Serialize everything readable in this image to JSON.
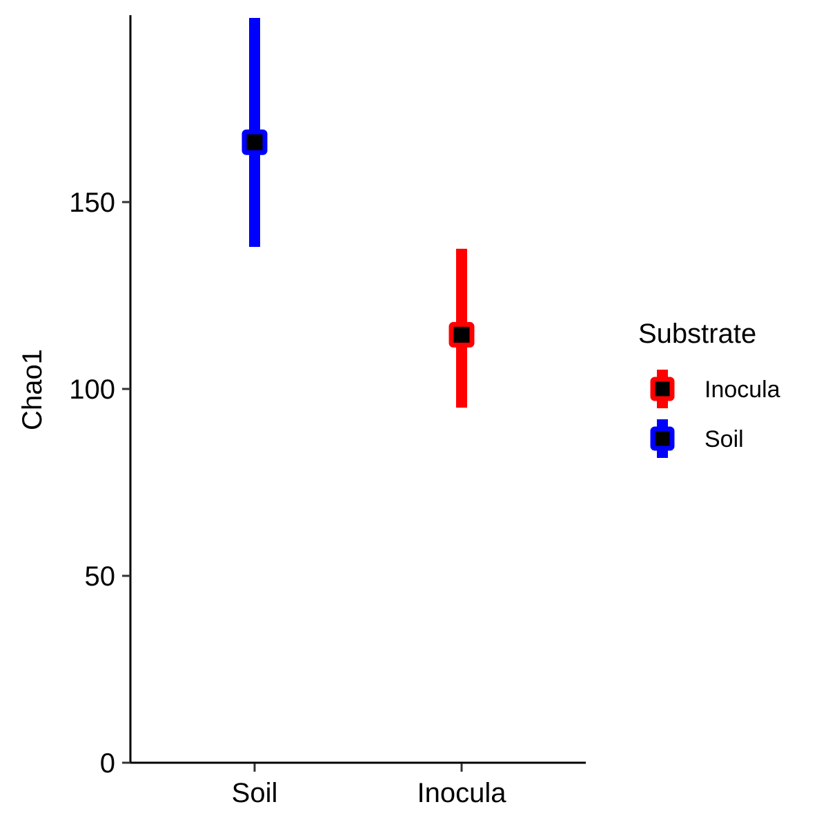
{
  "chart_data": {
    "type": "pointrange",
    "categories": [
      "Soil",
      "Inocula"
    ],
    "series": [
      {
        "name": "Soil",
        "category": "Soil",
        "color": "#0000ff",
        "mean": 166,
        "lower": 138,
        "upper": 200
      },
      {
        "name": "Inocula",
        "category": "Inocula",
        "color": "#ff0000",
        "mean": 114.5,
        "lower": 95,
        "upper": 137.5
      }
    ],
    "xlabel": "",
    "ylabel": "Chao1",
    "yticks": [
      0,
      50,
      100,
      150
    ],
    "ylim": [
      0,
      200
    ],
    "grid": false,
    "legend": {
      "title": "Substrate",
      "position": "right",
      "entries": [
        {
          "label": "Inocula",
          "color": "#ff0000"
        },
        {
          "label": "Soil",
          "color": "#0000ff"
        }
      ]
    },
    "point_color": "#000000"
  }
}
